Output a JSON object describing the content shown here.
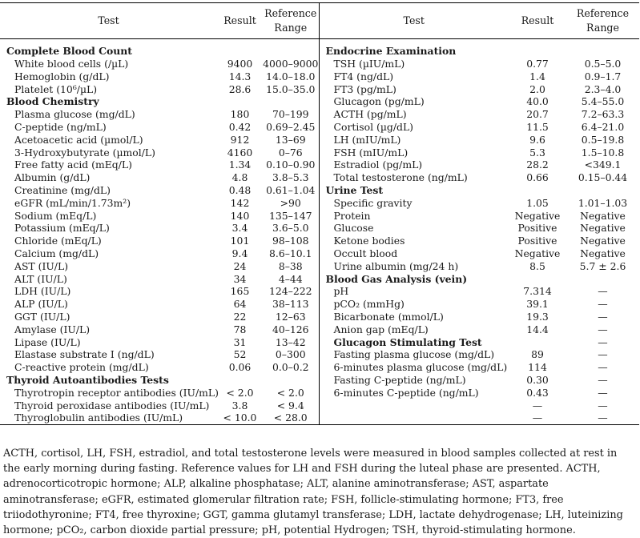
{
  "headers": {
    "test": "Test",
    "result": "Result",
    "reference": "Reference Range"
  },
  "left_rows": [
    {
      "type": "section",
      "label": "Complete Blood Count",
      "result": "",
      "ref": ""
    },
    {
      "type": "item",
      "label": "White blood cells (/µL)",
      "result": "9400",
      "ref": "4000–9000"
    },
    {
      "type": "item",
      "label": "Hemoglobin (g/dL)",
      "result": "14.3",
      "ref": "14.0–18.0"
    },
    {
      "type": "item",
      "label": "Platelet (10⁶/µL)",
      "result": "28.6",
      "ref": "15.0–35.0"
    },
    {
      "type": "section",
      "label": "Blood Chemistry",
      "result": "",
      "ref": ""
    },
    {
      "type": "item",
      "label": "Plasma glucose (mg/dL)",
      "result": "180",
      "ref": "70–199"
    },
    {
      "type": "item",
      "label": "C-peptide (ng/mL)",
      "result": "0.42",
      "ref": "0.69–2.45"
    },
    {
      "type": "item",
      "label": "Acetoacetic acid (µmol/L)",
      "result": "912",
      "ref": "13–69"
    },
    {
      "type": "item",
      "label": "3-Hydroxybutyrate (µmol/L)",
      "result": "4160",
      "ref": "0–76"
    },
    {
      "type": "item",
      "label": "Free fatty acid (mEq/L)",
      "result": "1.34",
      "ref": "0.10–0.90"
    },
    {
      "type": "item",
      "label": "Albumin (g/dL)",
      "result": "4.8",
      "ref": "3.8–5.3"
    },
    {
      "type": "item",
      "label": "Creatinine (mg/dL)",
      "result": "0.48",
      "ref": "0.61–1.04"
    },
    {
      "type": "item",
      "label": "eGFR (mL/min/1.73m²)",
      "result": "142",
      "ref": ">90"
    },
    {
      "type": "item",
      "label": "Sodium (mEq/L)",
      "result": "140",
      "ref": "135–147"
    },
    {
      "type": "item",
      "label": "Potassium (mEq/L)",
      "result": "3.4",
      "ref": "3.6–5.0"
    },
    {
      "type": "item",
      "label": "Chloride (mEq/L)",
      "result": "101",
      "ref": "98–108"
    },
    {
      "type": "item",
      "label": "Calcium (mg/dL)",
      "result": "9.4",
      "ref": "8.6–10.1"
    },
    {
      "type": "item",
      "label": "AST (IU/L)",
      "result": "24",
      "ref": "8–38"
    },
    {
      "type": "item",
      "label": "ALT (IU/L)",
      "result": "34",
      "ref": "4–44"
    },
    {
      "type": "item",
      "label": "LDH (IU/L)",
      "result": "165",
      "ref": "124–222"
    },
    {
      "type": "item",
      "label": "ALP (IU/L)",
      "result": "64",
      "ref": "38–113"
    },
    {
      "type": "item",
      "label": "GGT (IU/L)",
      "result": "22",
      "ref": "12–63"
    },
    {
      "type": "item",
      "label": "Amylase (IU/L)",
      "result": "78",
      "ref": "40–126"
    },
    {
      "type": "item",
      "label": "Lipase (IU/L)",
      "result": "31",
      "ref": "13–42"
    },
    {
      "type": "item",
      "label": "Elastase substrate I (ng/dL)",
      "result": "52",
      "ref": "0–300"
    },
    {
      "type": "item",
      "label": "C-reactive protein (mg/dL)",
      "result": "0.06",
      "ref": "0.0–0.2"
    },
    {
      "type": "section",
      "label": "Thyroid Autoantibodies Tests",
      "result": "",
      "ref": ""
    },
    {
      "type": "item",
      "label": "Thyrotropin receptor antibodies (IU/mL)",
      "result": "< 2.0",
      "ref": "< 2.0"
    },
    {
      "type": "item",
      "label": "Thyroid peroxidase antibodies (IU/mL)",
      "result": "3.8",
      "ref": "< 9.4"
    },
    {
      "type": "item",
      "label": "Thyroglobulin antibodies (IU/mL)",
      "result": "< 10.0",
      "ref": "< 28.0"
    }
  ],
  "right_rows": [
    {
      "type": "section",
      "label": "Endocrine Examination",
      "result": "",
      "ref": ""
    },
    {
      "type": "item",
      "label": "TSH (µIU/mL)",
      "result": "0.77",
      "ref": "0.5–5.0"
    },
    {
      "type": "item",
      "label": "FT4 (ng/dL)",
      "result": "1.4",
      "ref": "0.9–1.7"
    },
    {
      "type": "item",
      "label": "FT3 (pg/mL)",
      "result": "2.0",
      "ref": "2.3–4.0"
    },
    {
      "type": "item",
      "label": "Glucagon (pg/mL)",
      "result": "40.0",
      "ref": "5.4–55.0"
    },
    {
      "type": "item",
      "label": "ACTH (pg/mL)",
      "result": "20.7",
      "ref": "7.2–63.3"
    },
    {
      "type": "item",
      "label": "Cortisol (µg/dL)",
      "result": "11.5",
      "ref": "6.4–21.0"
    },
    {
      "type": "item",
      "label": "LH (mIU/mL)",
      "result": "9.6",
      "ref": "0.5–19.8"
    },
    {
      "type": "item",
      "label": "FSH (mIU/mL)",
      "result": "5.3",
      "ref": "1.5–10.8"
    },
    {
      "type": "item",
      "label": "Estradiol (pg/mL)",
      "result": "28.2",
      "ref": "<349.1"
    },
    {
      "type": "item",
      "label": "Total testosterone (ng/mL)",
      "result": "0.66",
      "ref": "0.15–0.44"
    },
    {
      "type": "section",
      "label": "Urine Test",
      "result": "",
      "ref": ""
    },
    {
      "type": "item",
      "label": "Specific gravity",
      "result": "1.05",
      "ref": "1.01–1.03"
    },
    {
      "type": "item",
      "label": "Protein",
      "result": "Negative",
      "ref": "Negative"
    },
    {
      "type": "item",
      "label": "Glucose",
      "result": "Positive",
      "ref": "Negative"
    },
    {
      "type": "item",
      "label": "Ketone bodies",
      "result": "Positive",
      "ref": "Negative"
    },
    {
      "type": "item",
      "label": "Occult blood",
      "result": "Negative",
      "ref": "Negative"
    },
    {
      "type": "item",
      "label": "Urine albumin (mg/24 h)",
      "result": "8.5",
      "ref": "5.7 ± 2.6"
    },
    {
      "type": "section",
      "label": "Blood Gas Analysis (vein)",
      "result": "",
      "ref": ""
    },
    {
      "type": "item",
      "label": "pH",
      "result": "7.314",
      "ref": "—"
    },
    {
      "type": "item",
      "label": "pCO₂ (mmHg)",
      "result": "39.1",
      "ref": "—"
    },
    {
      "type": "item",
      "label": "Bicarbonate (mmol/L)",
      "result": "19.3",
      "ref": "—"
    },
    {
      "type": "item",
      "label": "Anion gap (mEq/L)",
      "result": "14.4",
      "ref": "—"
    },
    {
      "type": "section2",
      "label": "Glucagon Stimulating Test",
      "result": "",
      "ref": "—"
    },
    {
      "type": "item",
      "label": "Fasting plasma glucose (mg/dL)",
      "result": "89",
      "ref": "—"
    },
    {
      "type": "item",
      "label": "6-minutes plasma glucose (mg/dL)",
      "result": "114",
      "ref": "—"
    },
    {
      "type": "item",
      "label": "Fasting C-peptide (ng/mL)",
      "result": "0.30",
      "ref": "—"
    },
    {
      "type": "item",
      "label": "6-minutes C-peptide (ng/mL)",
      "result": "0.43",
      "ref": "—"
    },
    {
      "type": "item",
      "label": "",
      "result": "—",
      "ref": "—"
    },
    {
      "type": "item",
      "label": "",
      "result": "—",
      "ref": "—"
    }
  ],
  "footnote": "ACTH, cortisol, LH, FSH, estradiol, and total testosterone levels were measured in blood samples collected at rest in the early morning during fasting. Reference values for LH and FSH during the luteal phase are presented. ACTH, adrenocorticotropic hormone; ALP, alkaline phosphatase; ALT, alanine aminotransferase; AST, aspartate aminotransferase; eGFR, estimated glomerular filtration rate; FSH, follicle-stimulating hormone; FT3, free triiodothyronine; FT4, free thyroxine; GGT, gamma glutamyl transferase; LDH, lactate dehydrogenase; LH, luteinizing hormone; pCO₂, carbon dioxide partial pressure; pH, potential Hydrogen; TSH, thyroid-stimulating hormone."
}
